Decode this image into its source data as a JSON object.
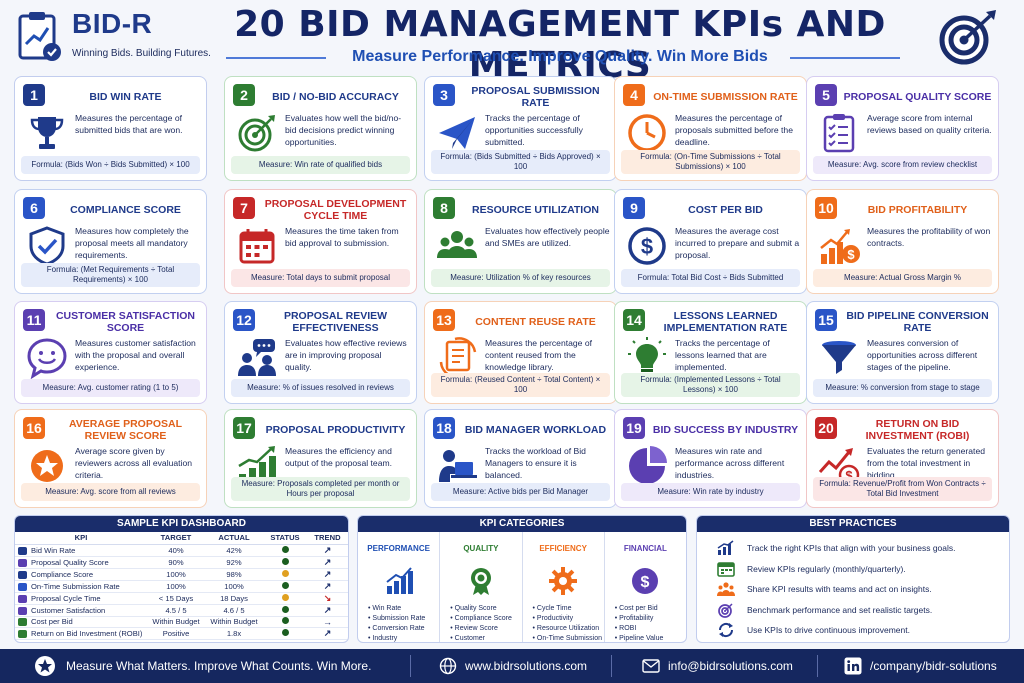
{
  "header": {
    "brand": "BID-R",
    "tagline": "Winning Bids. Building Futures.",
    "title": "20 BID MANAGEMENT KPIs AND METRICS",
    "subtitle": "Measure Performance. Improve Quality. Win More Bids"
  },
  "kpis": [
    {
      "num": "1",
      "title": "BID WIN RATE",
      "desc": "Measures the percentage of submitted bids that are won.",
      "foot": "Formula: (Bids Won ÷ Bids Submitted) × 100",
      "icon": "trophy-icon"
    },
    {
      "num": "2",
      "title": "BID / NO-BID ACCURACY",
      "desc": "Evaluates how well the bid/no-bid decisions predict winning opportunities.",
      "foot": "Measure: Win rate of qualified bids",
      "icon": "target-icon"
    },
    {
      "num": "3",
      "title": "PROPOSAL SUBMISSION RATE",
      "desc": "Tracks the percentage of opportunities successfully submitted.",
      "foot": "Formula: (Bids Submitted ÷ Bids Approved) × 100",
      "icon": "paper-plane-icon"
    },
    {
      "num": "4",
      "title": "ON-TIME SUBMISSION RATE",
      "desc": "Measures the percentage of proposals submitted before the deadline.",
      "foot": "Formula: (On-Time Submissions ÷ Total Submissions) × 100",
      "icon": "clock-icon"
    },
    {
      "num": "5",
      "title": "PROPOSAL QUALITY SCORE",
      "desc": "Average score from internal reviews based on quality criteria.",
      "foot": "Measure: Avg. score from review checklist",
      "icon": "checklist-icon"
    },
    {
      "num": "6",
      "title": "COMPLIANCE SCORE",
      "desc": "Measures how completely the proposal meets all mandatory requirements.",
      "foot": "Formula: (Met Requirements ÷ Total Requirements) × 100",
      "icon": "shield-check-icon"
    },
    {
      "num": "7",
      "title": "PROPOSAL DEVELOPMENT CYCLE TIME",
      "desc": "Measures the time taken from bid approval to submission.",
      "foot": "Measure: Total days to submit proposal",
      "icon": "calendar-icon"
    },
    {
      "num": "8",
      "title": "RESOURCE UTILIZATION",
      "desc": "Evaluates how effectively people and SMEs are utilized.",
      "foot": "Measure: Utilization % of key resources",
      "icon": "team-icon"
    },
    {
      "num": "9",
      "title": "COST PER BID",
      "desc": "Measures the average cost incurred to prepare and submit a proposal.",
      "foot": "Formula: Total Bid Cost ÷ Bids Submitted",
      "icon": "dollar-icon"
    },
    {
      "num": "10",
      "title": "BID PROFITABILITY",
      "desc": "Measures the profitability of won contracts.",
      "foot": "Measure: Actual Gross Margin %",
      "icon": "profit-chart-icon"
    },
    {
      "num": "11",
      "title": "CUSTOMER SATISFACTION SCORE",
      "desc": "Measures customer satisfaction with the proposal and overall experience.",
      "foot": "Measure: Avg. customer rating (1 to 5)",
      "icon": "smiley-icon"
    },
    {
      "num": "12",
      "title": "PROPOSAL REVIEW EFFECTIVENESS",
      "desc": "Evaluates how effective reviews are in improving proposal quality.",
      "foot": "Measure: % of issues resolved in reviews",
      "icon": "review-discussion-icon"
    },
    {
      "num": "13",
      "title": "CONTENT REUSE RATE",
      "desc": "Measures the percentage of content reused from the knowledge library.",
      "foot": "Formula: (Reused Content ÷ Total Content) × 100",
      "icon": "document-reuse-icon"
    },
    {
      "num": "14",
      "title": "LESSONS LEARNED IMPLEMENTATION RATE",
      "desc": "Tracks the percentage of lessons learned that are implemented.",
      "foot": "Formula: (Implemented Lessons ÷ Total Lessons) × 100",
      "icon": "lightbulb-icon"
    },
    {
      "num": "15",
      "title": "BID PIPELINE CONVERSION RATE",
      "desc": "Measures conversion of opportunities across different stages of the pipeline.",
      "foot": "Measure: % conversion from stage to stage",
      "icon": "funnel-icon"
    },
    {
      "num": "16",
      "title": "AVERAGE PROPOSAL REVIEW SCORE",
      "desc": "Average score given by reviewers across all evaluation criteria.",
      "foot": "Measure: Avg. score from all reviews",
      "icon": "star-badge-icon"
    },
    {
      "num": "17",
      "title": "PROPOSAL PRODUCTIVITY",
      "desc": "Measures the efficiency and output of the proposal team.",
      "foot": "Measure: Proposals completed per month or Hours per proposal",
      "icon": "growth-bars-icon"
    },
    {
      "num": "18",
      "title": "BID MANAGER WORKLOAD",
      "desc": "Tracks the workload of Bid Managers to ensure it is balanced.",
      "foot": "Measure: Active bids per Bid Manager",
      "icon": "person-laptop-icon"
    },
    {
      "num": "19",
      "title": "BID SUCCESS BY INDUSTRY",
      "desc": "Measures win rate and performance across different industries.",
      "foot": "Measure: Win rate by industry",
      "icon": "pie-chart-icon"
    },
    {
      "num": "20",
      "title": "RETURN ON BID INVESTMENT (ROBI)",
      "desc": "Evaluates the return generated from the total investment in bidding.",
      "foot": "Formula: Revenue/Profit from Won Contracts ÷ Total Bid Investment",
      "icon": "roi-growth-icon"
    }
  ],
  "dashboard": {
    "title": "SAMPLE KPI DASHBOARD",
    "headers": [
      "KPI",
      "TARGET",
      "ACTUAL",
      "STATUS",
      "TREND"
    ],
    "rows": [
      {
        "kpi": "Bid Win Rate",
        "target": "40%",
        "actual": "42%",
        "status": "green",
        "trend": "↗"
      },
      {
        "kpi": "Proposal Quality Score",
        "target": "90%",
        "actual": "92%",
        "status": "green",
        "trend": "↗"
      },
      {
        "kpi": "Compliance Score",
        "target": "100%",
        "actual": "98%",
        "status": "amber",
        "trend": "↗"
      },
      {
        "kpi": "On-Time Submission Rate",
        "target": "100%",
        "actual": "100%",
        "status": "green",
        "trend": "↗"
      },
      {
        "kpi": "Proposal Cycle Time",
        "target": "< 15 Days",
        "actual": "18 Days",
        "status": "amber",
        "trend": "↘"
      },
      {
        "kpi": "Customer Satisfaction",
        "target": "4.5 / 5",
        "actual": "4.6 / 5",
        "status": "green",
        "trend": "↗"
      },
      {
        "kpi": "Cost per Bid",
        "target": "Within Budget",
        "actual": "Within Budget",
        "status": "green",
        "trend": "→"
      },
      {
        "kpi": "Return on Bid Investment (ROBI)",
        "target": "Positive",
        "actual": "1.8x",
        "status": "green",
        "trend": "↗"
      }
    ]
  },
  "categories": {
    "title": "KPI CATEGORIES",
    "items": [
      {
        "name": "PERFORMANCE",
        "color": "#1f4fb3",
        "icon": "bar-growth-icon",
        "list": [
          "Win Rate",
          "Submission Rate",
          "Conversion Rate",
          "Industry Performance"
        ]
      },
      {
        "name": "QUALITY",
        "color": "#2e7d32",
        "icon": "award-ribbon-icon",
        "list": [
          "Quality Score",
          "Compliance Score",
          "Review Score",
          "Customer Satisfaction"
        ]
      },
      {
        "name": "EFFICIENCY",
        "color": "#ef6c1a",
        "icon": "gear-icon",
        "list": [
          "Cycle Time",
          "Productivity",
          "Resource Utilization",
          "On-Time Submission"
        ]
      },
      {
        "name": "FINANCIAL",
        "color": "#5b3fb1",
        "icon": "dollar-coin-icon",
        "list": [
          "Cost per Bid",
          "Profitability",
          "ROBI",
          "Pipeline Value"
        ]
      }
    ]
  },
  "best_practices": {
    "title": "BEST PRACTICES",
    "items": [
      {
        "text": "Track the right KPIs that align with your business goals.",
        "icon": "bar-chart-icon"
      },
      {
        "text": "Review KPIs regularly (monthly/quarterly).",
        "icon": "calendar-icon"
      },
      {
        "text": "Share KPI results with teams and act on insights.",
        "icon": "team-icon"
      },
      {
        "text": "Benchmark performance and set realistic targets.",
        "icon": "target-icon"
      },
      {
        "text": "Use KPIs to drive continuous improvement.",
        "icon": "cycle-icon"
      }
    ]
  },
  "footer": {
    "slogan": "Measure What Matters. Improve What Counts. Win More.",
    "website": "www.bidrsolutions.com",
    "email": "info@bidrsolutions.com",
    "linkedin": "/company/bidr-solutions"
  }
}
